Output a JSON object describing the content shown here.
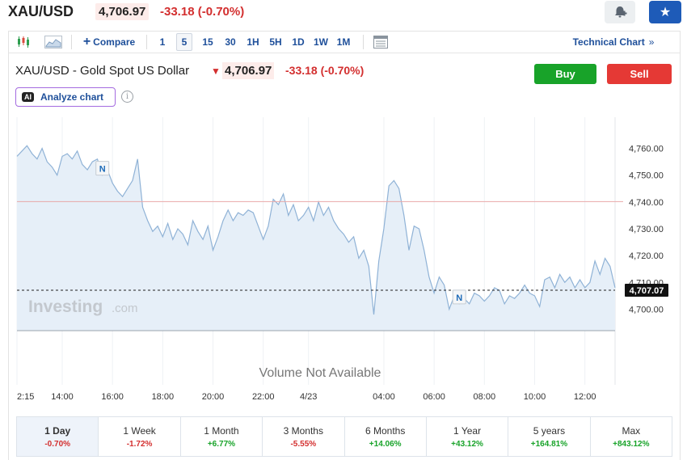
{
  "header": {
    "symbol": "XAU/USD",
    "price": "4,706.97",
    "change": "-33.18",
    "change_pct": "(-0.70%)"
  },
  "toolbar": {
    "compare_label": "Compare",
    "intervals": [
      "1",
      "5",
      "15",
      "30",
      "1H",
      "5H",
      "1D",
      "1W",
      "1M"
    ],
    "active_interval": "5",
    "technical_chart_label": "Technical Chart",
    "technical_chart_chevron": "»"
  },
  "chart_header": {
    "name": "XAU/USD - Gold Spot US Dollar",
    "price": "4,706.97",
    "change": "-33.18",
    "change_pct": "(-0.70%)",
    "buy_label": "Buy",
    "sell_label": "Sell",
    "analyze_label": "Analyze chart",
    "ai_badge": "AI",
    "info_glyph": "i"
  },
  "chart_data": {
    "type": "area",
    "watermark_main": "Investing",
    "watermark_suffix": ".com",
    "volume_message": "Volume Not Available",
    "last_price_label": "4,707.07",
    "last_price": 4707.07,
    "reference_line": 4740.15,
    "news_markers": [
      {
        "label": "N",
        "x_index": 17
      },
      {
        "label": "N",
        "x_index": 88
      }
    ],
    "ylim": [
      4692,
      4771
    ],
    "y_ticks": [
      4700,
      4710,
      4720,
      4730,
      4740,
      4750,
      4760
    ],
    "y_tick_labels": [
      "4,700.00",
      "4,710.00",
      "4,720.00",
      "4,730.00",
      "4,740.00",
      "4,750.00",
      "4,760.00"
    ],
    "x_tick_labels": [
      "2:15",
      "14:00",
      "16:00",
      "18:00",
      "20:00",
      "22:00",
      "4/23",
      "04:00",
      "06:00",
      "08:00",
      "10:00",
      "12:00"
    ],
    "x_tick_index": [
      0,
      9,
      19,
      29,
      39,
      49,
      58,
      73,
      83,
      93,
      103,
      113
    ],
    "values": [
      4757,
      4759,
      4761,
      4758,
      4756,
      4760,
      4755,
      4753,
      4750,
      4757,
      4758,
      4756,
      4759,
      4754,
      4752,
      4755,
      4756,
      4750,
      4752,
      4747,
      4744,
      4742,
      4745,
      4748,
      4756,
      4738,
      4733,
      4729,
      4731,
      4727,
      4732,
      4726,
      4730,
      4728,
      4724,
      4733,
      4729,
      4726,
      4731,
      4722,
      4727,
      4733,
      4737,
      4733,
      4736,
      4735,
      4737,
      4736,
      4731,
      4726,
      4731,
      4741,
      4739,
      4743,
      4735,
      4739,
      4733,
      4735,
      4738,
      4733,
      4740,
      4735,
      4738,
      4733,
      4730,
      4728,
      4725,
      4727,
      4719,
      4722,
      4716,
      4698,
      4718,
      4730,
      4746,
      4748,
      4745,
      4735,
      4722,
      4731,
      4730,
      4722,
      4712,
      4706,
      4712,
      4709,
      4700,
      4705,
      4702,
      4704,
      4702,
      4706,
      4705,
      4703,
      4705,
      4708,
      4707,
      4702,
      4705,
      4704,
      4706,
      4709,
      4706,
      4705,
      4701,
      4711,
      4712,
      4708,
      4713,
      4710,
      4712,
      4708,
      4711,
      4708,
      4710,
      4718,
      4713,
      4719,
      4716,
      4708
    ]
  },
  "periods": [
    {
      "label": "1 Day",
      "change": "-0.70%",
      "dir": "neg"
    },
    {
      "label": "1 Week",
      "change": "-1.72%",
      "dir": "neg"
    },
    {
      "label": "1 Month",
      "change": "+6.77%",
      "dir": "pos"
    },
    {
      "label": "3 Months",
      "change": "-5.55%",
      "dir": "neg"
    },
    {
      "label": "6 Months",
      "change": "+14.06%",
      "dir": "pos"
    },
    {
      "label": "1 Year",
      "change": "+43.12%",
      "dir": "pos"
    },
    {
      "label": "5 years",
      "change": "+164.81%",
      "dir": "pos"
    },
    {
      "label": "Max",
      "change": "+843.12%",
      "dir": "pos"
    }
  ],
  "colors": {
    "accent": "#1e4f9a",
    "negative": "#d32f2f",
    "positive": "#18a329",
    "area_fill": "#e6eff8",
    "area_line": "#8fb2d6",
    "reference_line": "#e9a8a8"
  }
}
